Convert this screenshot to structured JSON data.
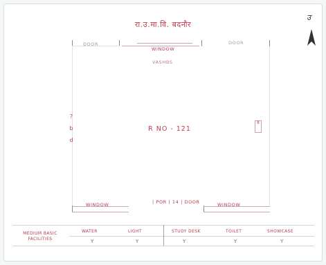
{
  "header": {
    "title": "रा.उ.मा.वि. बदनौर"
  },
  "compass": {
    "mark": "उ"
  },
  "plan": {
    "top_left_door": "DOOR",
    "top_window": "WINDOW",
    "top_right_door": "DOOR",
    "top_sub_label": "VASHBS",
    "room_label": "R NO - 121",
    "left_items": [
      "?",
      "b",
      "d"
    ],
    "right_item": "B",
    "bottom_left_window": "WINDOW",
    "bottom_center": "| POR | 14 | DOOR",
    "bottom_right_window": "WINDOW"
  },
  "table": {
    "row_header": [
      "MEDIUM BASIC",
      "FACILITIES"
    ],
    "columns": [
      "WATER",
      "LIGHT",
      "STUDY DESK",
      "TOILET",
      "SHOWCASE"
    ],
    "values": [
      "Y",
      "Y",
      "Y",
      "Y",
      "Y"
    ]
  }
}
